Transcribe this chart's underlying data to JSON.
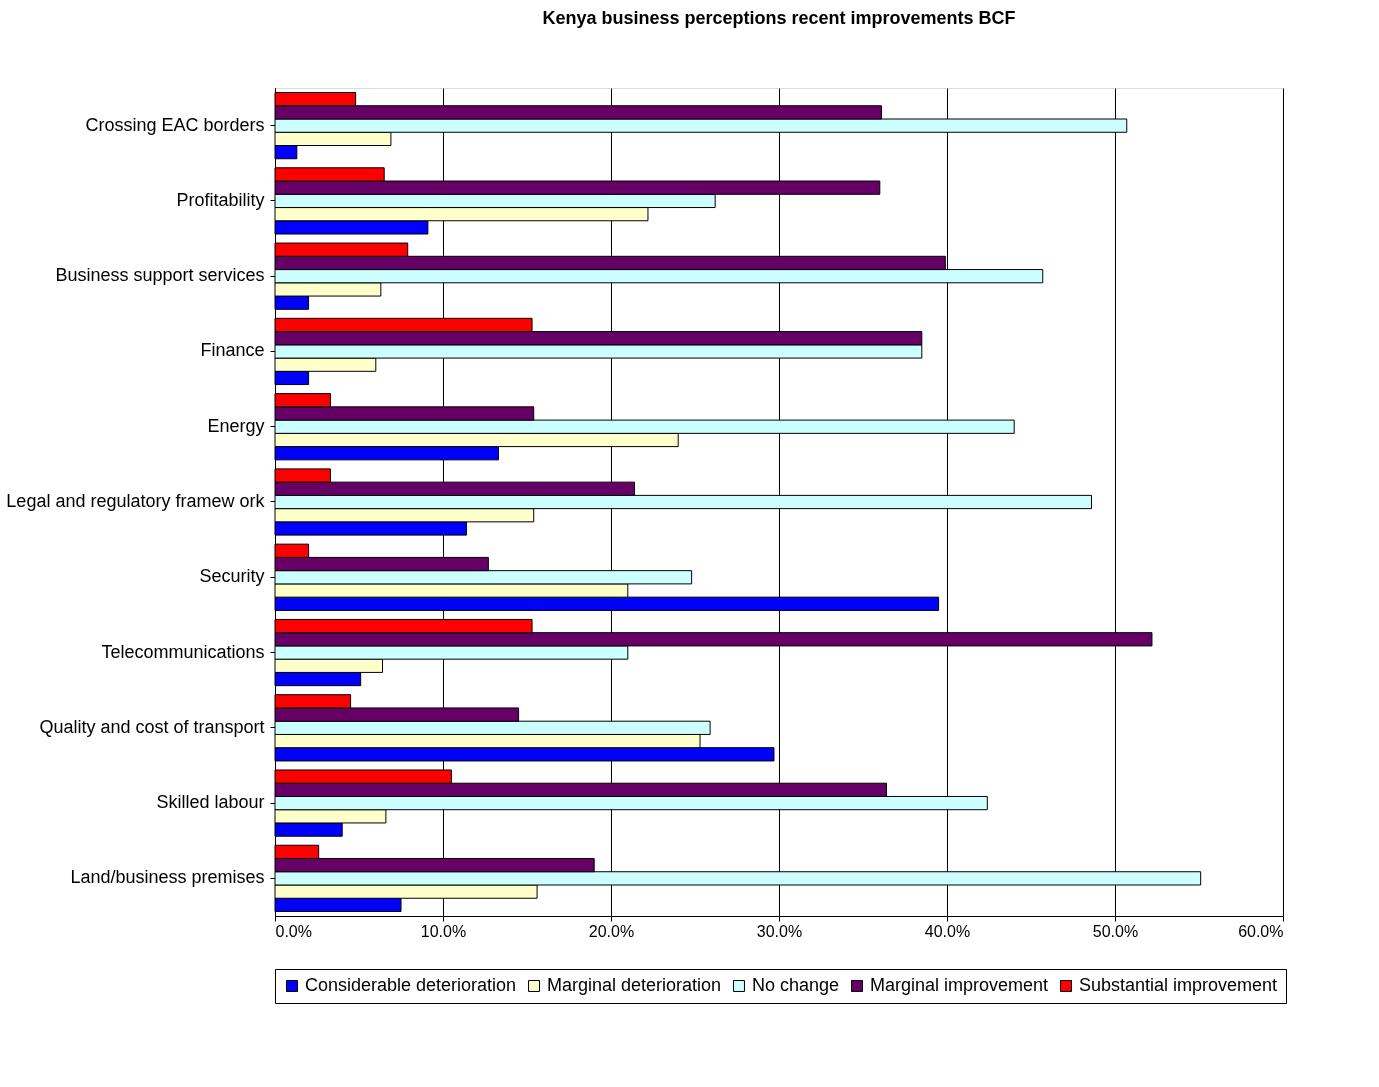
{
  "chart_data": {
    "type": "bar",
    "orientation": "horizontal",
    "title": "Kenya business perceptions recent improvements BCF",
    "categories": [
      "Crossing EAC borders",
      "Profitability",
      "Business support services",
      "Finance",
      "Energy",
      "Legal and regulatory framew ork",
      "Security",
      "Telecommunications",
      "Quality and cost of transport",
      "Skilled labour",
      "Land/business premises"
    ],
    "series": [
      {
        "name": "Considerable deterioration",
        "color": "#0000ff",
        "values": [
          1.3,
          9.1,
          2.0,
          2.0,
          13.3,
          11.4,
          39.5,
          5.1,
          29.7,
          4.0,
          7.5
        ]
      },
      {
        "name": "Marginal deterioration",
        "color": "#ffffcc",
        "values": [
          6.9,
          22.2,
          6.3,
          6.0,
          24.0,
          15.4,
          21.0,
          6.4,
          25.3,
          6.6,
          15.6
        ]
      },
      {
        "name": "No change",
        "color": "#ccffff",
        "values": [
          50.7,
          26.2,
          45.7,
          38.5,
          44.0,
          48.6,
          24.8,
          21.0,
          25.9,
          42.4,
          55.1
        ]
      },
      {
        "name": "Marginal improvement",
        "color": "#660066",
        "values": [
          36.1,
          36.0,
          39.9,
          38.5,
          15.4,
          21.4,
          12.7,
          52.2,
          14.5,
          36.4,
          19.0
        ]
      },
      {
        "name": "Substantial improvement",
        "color": "#ff0000",
        "values": [
          4.8,
          6.5,
          7.9,
          15.3,
          3.3,
          3.3,
          2.0,
          15.3,
          4.5,
          10.5,
          2.6
        ]
      }
    ],
    "xlim": [
      0,
      60
    ],
    "xticks": [
      {
        "value": 0,
        "label": "0.0%"
      },
      {
        "value": 10,
        "label": "10.0%"
      },
      {
        "value": 20,
        "label": "20.0%"
      },
      {
        "value": 30,
        "label": "30.0%"
      },
      {
        "value": 40,
        "label": "40.0%"
      },
      {
        "value": 50,
        "label": "50.0%"
      },
      {
        "value": 60,
        "label": "60.0%"
      }
    ],
    "grid": "x",
    "legend": "bottom"
  }
}
